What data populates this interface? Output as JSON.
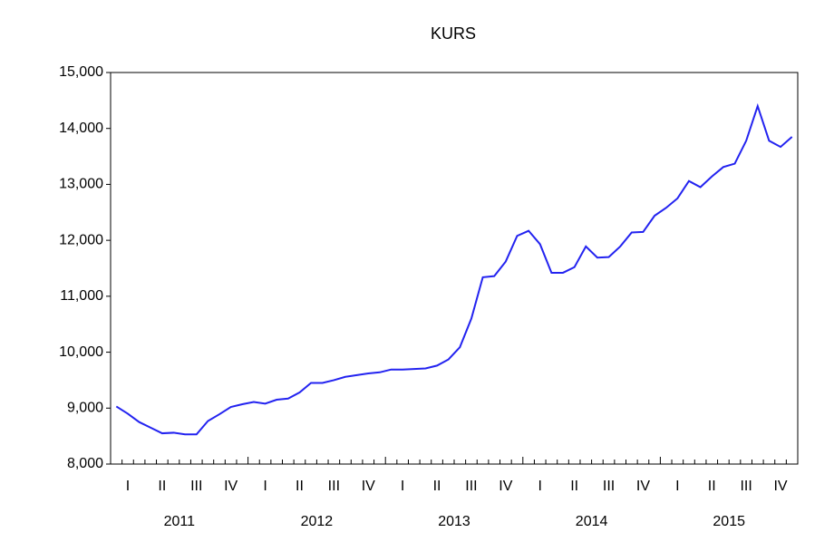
{
  "chart_data": {
    "type": "line",
    "title": "KURS",
    "quarters": [
      "I",
      "II",
      "III",
      "IV",
      "I",
      "II",
      "III",
      "IV",
      "I",
      "II",
      "III",
      "IV",
      "I",
      "II",
      "III",
      "IV",
      "I",
      "II",
      "III",
      "IV"
    ],
    "years": [
      "2011",
      "2012",
      "2013",
      "2014",
      "2015"
    ],
    "series": [
      {
        "name": "KURS",
        "color": "#2323f0",
        "values": [
          9030,
          8900,
          8750,
          8650,
          8550,
          8560,
          8530,
          8530,
          8770,
          8890,
          9020,
          9070,
          9110,
          9080,
          9150,
          9170,
          9280,
          9450,
          9450,
          9500,
          9560,
          9590,
          9620,
          9640,
          9690,
          9690,
          9700,
          9710,
          9760,
          9870,
          10090,
          10600,
          11340,
          11360,
          11620,
          12080,
          12170,
          11930,
          11420,
          11420,
          11520,
          11890,
          11690,
          11700,
          11890,
          12140,
          12150,
          12440,
          12580,
          12750,
          13060,
          12950,
          13140,
          13310,
          13370,
          13780,
          14400,
          13780,
          13670,
          13850
        ]
      }
    ],
    "ylim": [
      8000,
      15000
    ],
    "yticks": [
      {
        "value": 8000,
        "label": "8,000"
      },
      {
        "value": 9000,
        "label": "9,000"
      },
      {
        "value": 10000,
        "label": "10,000"
      },
      {
        "value": 11000,
        "label": "11,000"
      },
      {
        "value": 12000,
        "label": "12,000"
      },
      {
        "value": 13000,
        "label": "13,000"
      },
      {
        "value": 14000,
        "label": "14,000"
      },
      {
        "value": 15000,
        "label": "15,000"
      }
    ],
    "grid": false
  }
}
